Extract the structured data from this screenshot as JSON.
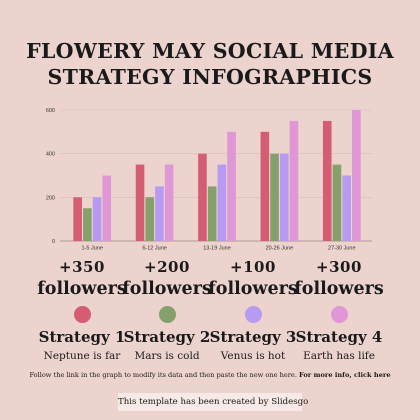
{
  "title": {
    "line1": "FLOWERY MAY SOCIAL MEDIA",
    "line2": "STRATEGY INFOGRAPHICS"
  },
  "colors": {
    "background": "#ecd3ce",
    "strategy1": "#d45d74",
    "strategy2": "#85a06a",
    "strategy3": "#b79af2",
    "strategy4": "#df98d5"
  },
  "chart_data": {
    "type": "bar",
    "categories": [
      "1-5 June",
      "6-12 June",
      "13-19 June",
      "20-26 June",
      "27-30 June"
    ],
    "series": [
      {
        "values": [
          200,
          350,
          400,
          500,
          550
        ],
        "color": "#d45d74"
      },
      {
        "values": [
          150,
          200,
          250,
          400,
          350
        ],
        "color": "#85a06a"
      },
      {
        "values": [
          200,
          250,
          350,
          400,
          300
        ],
        "color": "#b79af2"
      },
      {
        "values": [
          300,
          350,
          500,
          550,
          600
        ],
        "color": "#df98d5"
      }
    ],
    "ylim": [
      0,
      600
    ],
    "yticks": [
      "0",
      "200",
      "400",
      "600"
    ],
    "grid": true,
    "legend": "none"
  },
  "strategies": [
    {
      "stat": "+350",
      "followers": "followers",
      "name": "Strategy 1",
      "desc": "Neptune is far",
      "color": "#d45d74"
    },
    {
      "stat": "+200",
      "followers": "followers",
      "name": "Strategy 2",
      "desc": "Mars is cold",
      "color": "#85a06a"
    },
    {
      "stat": "+100",
      "followers": "followers",
      "name": "Strategy 3",
      "desc": "Venus is hot",
      "color": "#b79af2"
    },
    {
      "stat": "+300",
      "followers": "followers",
      "name": "Strategy 4",
      "desc": "Earth has life",
      "color": "#df98d5"
    }
  ],
  "note": {
    "text": "Follow the link in the graph to modify its data and then paste the new one here.",
    "link": "For more info, click here"
  },
  "footer": {
    "text": "This template has been created by Slidesgo"
  }
}
